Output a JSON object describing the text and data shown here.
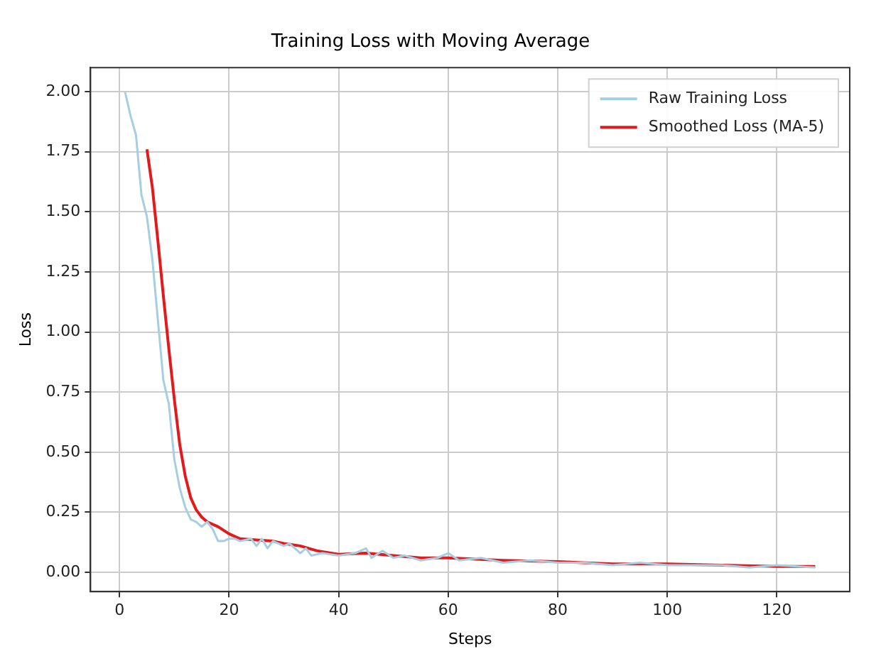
{
  "chart_data": {
    "type": "line",
    "title": "Training Loss with Moving Average",
    "xlabel": "Steps",
    "ylabel": "Loss",
    "xlim": [
      -5.3,
      133.3
    ],
    "xticks": [
      0,
      20,
      40,
      60,
      80,
      100,
      120
    ],
    "ylim": [
      -0.08,
      2.1
    ],
    "yticks": [
      {
        "value": 0,
        "label": "0.00"
      },
      {
        "value": 0.25,
        "label": "0.25"
      },
      {
        "value": 0.5,
        "label": "0.50"
      },
      {
        "value": 0.75,
        "label": "0.75"
      },
      {
        "value": 1,
        "label": "1.00"
      },
      {
        "value": 1.25,
        "label": "1.25"
      },
      {
        "value": 1.5,
        "label": "1.50"
      },
      {
        "value": 1.75,
        "label": "1.75"
      },
      {
        "value": 2,
        "label": "2.00"
      }
    ],
    "grid": true,
    "legend": "top right",
    "marker": "none",
    "line_style": "solid",
    "series": [
      {
        "name": "Raw Training Loss",
        "color": "#a6cee3",
        "x": [
          1,
          2,
          3,
          4,
          5,
          6,
          7,
          8,
          9,
          10,
          11,
          12,
          13,
          14,
          15,
          16,
          17,
          18,
          19,
          20,
          21,
          22,
          24,
          25,
          26,
          27,
          28,
          30,
          31,
          33,
          34,
          35,
          37,
          40,
          43,
          45,
          46,
          48,
          50,
          52,
          55,
          58,
          60,
          62,
          66,
          70,
          75,
          80,
          85,
          90,
          95,
          100,
          105,
          110,
          115,
          120,
          127
        ],
        "values": [
          2.0,
          1.9,
          1.82,
          1.57,
          1.48,
          1.3,
          1.05,
          0.8,
          0.7,
          0.47,
          0.35,
          0.27,
          0.22,
          0.21,
          0.19,
          0.21,
          0.18,
          0.13,
          0.13,
          0.14,
          0.14,
          0.13,
          0.14,
          0.11,
          0.14,
          0.1,
          0.13,
          0.11,
          0.12,
          0.08,
          0.1,
          0.07,
          0.08,
          0.07,
          0.08,
          0.1,
          0.06,
          0.09,
          0.06,
          0.07,
          0.05,
          0.06,
          0.08,
          0.05,
          0.06,
          0.04,
          0.05,
          0.04,
          0.04,
          0.03,
          0.04,
          0.03,
          0.03,
          0.03,
          0.02,
          0.03,
          0.02
        ]
      },
      {
        "name": "Smoothed Loss (MA-5)",
        "color": "#e31a1c",
        "x": [
          5,
          6,
          7,
          8,
          9,
          10,
          11,
          12,
          13,
          14,
          15,
          16,
          18,
          20,
          22,
          25,
          28,
          30,
          33,
          36,
          40,
          45,
          50,
          55,
          60,
          65,
          70,
          80,
          90,
          100,
          110,
          120,
          127
        ],
        "values": [
          1.76,
          1.6,
          1.38,
          1.15,
          0.93,
          0.72,
          0.53,
          0.4,
          0.31,
          0.26,
          0.23,
          0.21,
          0.19,
          0.16,
          0.14,
          0.135,
          0.13,
          0.12,
          0.11,
          0.09,
          0.075,
          0.08,
          0.07,
          0.06,
          0.06,
          0.055,
          0.05,
          0.045,
          0.035,
          0.035,
          0.03,
          0.025,
          0.025
        ]
      }
    ]
  }
}
